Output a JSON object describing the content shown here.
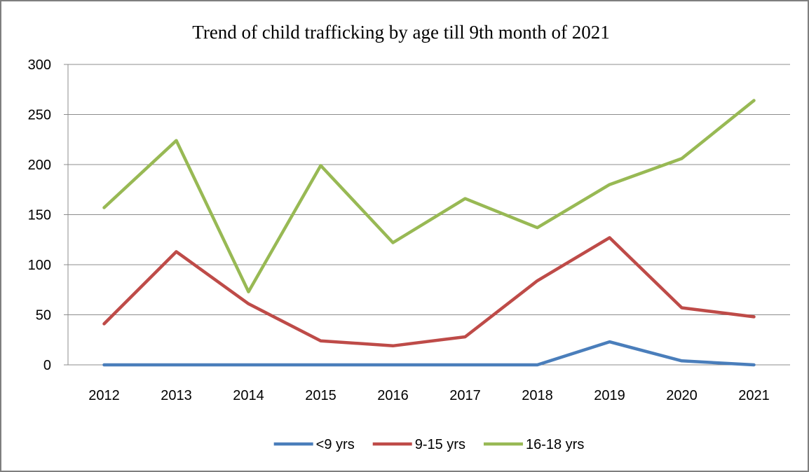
{
  "chart_data": {
    "type": "line",
    "title": "Trend of child trafficking by age till 9th month of 2021",
    "xlabel": "",
    "ylabel": "",
    "categories": [
      "2012",
      "2013",
      "2014",
      "2015",
      "2016",
      "2017",
      "2018",
      "2019",
      "2020",
      "2021"
    ],
    "ylim": [
      0,
      300
    ],
    "yticks": [
      0,
      50,
      100,
      150,
      200,
      250,
      300
    ],
    "grid": true,
    "legend_position": "bottom",
    "series": [
      {
        "name": "<9 yrs",
        "color": "#4a7ebb",
        "values": [
          0,
          0,
          0,
          0,
          0,
          0,
          0,
          23,
          4,
          0
        ]
      },
      {
        "name": "9-15 yrs",
        "color": "#be4b48",
        "values": [
          41,
          113,
          61,
          24,
          19,
          28,
          84,
          127,
          57,
          48
        ]
      },
      {
        "name": "16-18 yrs",
        "color": "#98b954",
        "values": [
          157,
          224,
          73,
          199,
          122,
          166,
          137,
          180,
          206,
          264
        ]
      }
    ]
  }
}
